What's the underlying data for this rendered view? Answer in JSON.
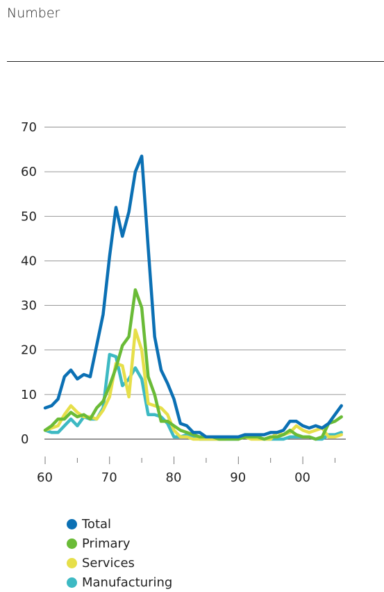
{
  "header": {
    "unit_label": "Number"
  },
  "chart_data": {
    "type": "line",
    "title": "",
    "xlabel": "",
    "ylabel": "Number",
    "xlim": [
      1960,
      2007
    ],
    "ylim": [
      0,
      70
    ],
    "y_ticks": [
      0,
      10,
      20,
      30,
      40,
      50,
      60,
      70
    ],
    "x_ticks": [
      {
        "value": 1960,
        "label": "60"
      },
      {
        "value": 1970,
        "label": "70"
      },
      {
        "value": 1980,
        "label": "80"
      },
      {
        "value": 1990,
        "label": "90"
      },
      {
        "value": 2000,
        "label": "00"
      }
    ],
    "grid": "horizontal",
    "legend_position": "bottom-left",
    "x": [
      1960,
      1961,
      1962,
      1963,
      1964,
      1965,
      1966,
      1967,
      1968,
      1969,
      1970,
      1971,
      1972,
      1973,
      1974,
      1975,
      1976,
      1977,
      1978,
      1979,
      1980,
      1981,
      1982,
      1983,
      1984,
      1985,
      1986,
      1987,
      1988,
      1989,
      1990,
      1991,
      1992,
      1993,
      1994,
      1995,
      1996,
      1997,
      1998,
      1999,
      2000,
      2001,
      2002,
      2003,
      2004,
      2005,
      2006
    ],
    "series": [
      {
        "name": "Total",
        "color": "#0b70b4",
        "values": [
          7,
          7.5,
          9,
          14,
          15.5,
          13.5,
          14.5,
          14,
          21,
          28,
          41,
          52,
          45.5,
          51,
          60,
          63.5,
          43,
          23,
          15.5,
          12.5,
          9,
          3.5,
          3,
          1.5,
          1.5,
          0.5,
          0.5,
          0.5,
          0.5,
          0.5,
          0.5,
          1,
          1,
          1,
          1,
          1.5,
          1.5,
          2,
          4,
          4,
          3,
          2.5,
          3,
          2.5,
          3.5,
          5.5,
          7.5
        ]
      },
      {
        "name": "Primary",
        "color": "#6abb37",
        "values": [
          2,
          3,
          4.5,
          4.5,
          6,
          5,
          5.5,
          4.5,
          7,
          8.5,
          12,
          16,
          21,
          23,
          33.5,
          29.5,
          14,
          10,
          4,
          4,
          3,
          2,
          1.5,
          1,
          0.5,
          0.5,
          0.5,
          0,
          0,
          0,
          0,
          0.5,
          0.5,
          0.5,
          0,
          0.5,
          0.5,
          1,
          2,
          1,
          0.5,
          0.5,
          0,
          0.5,
          3.5,
          4,
          5
        ]
      },
      {
        "name": "Services",
        "color": "#e6df4a",
        "values": [
          2,
          2.5,
          3,
          5.5,
          7.5,
          6,
          5,
          5,
          4.5,
          6.5,
          9.5,
          17,
          16.5,
          9.5,
          24.5,
          20,
          8,
          7.5,
          7,
          5.5,
          2,
          0.5,
          0.5,
          0,
          0,
          0,
          0,
          0,
          0,
          0.5,
          0,
          0.5,
          0,
          0,
          0,
          0,
          1.5,
          1,
          1.5,
          3,
          2,
          1.5,
          2,
          2.5,
          0.5,
          0.5,
          1
        ]
      },
      {
        "name": "Manufacturing",
        "color": "#3db9c3",
        "values": [
          2,
          1.5,
          1.5,
          3,
          4.5,
          3,
          5,
          4.5,
          4.5,
          7,
          19,
          18.5,
          12,
          13.5,
          16,
          13.5,
          5.5,
          5.5,
          5,
          3.5,
          0.5,
          0.5,
          1,
          0.5,
          0,
          0,
          0,
          0,
          0,
          0,
          0,
          0.5,
          0.5,
          0.5,
          0,
          0,
          0,
          0,
          0.5,
          0.5,
          0.5,
          0.5,
          0,
          0,
          1,
          1,
          1.5
        ]
      }
    ]
  }
}
